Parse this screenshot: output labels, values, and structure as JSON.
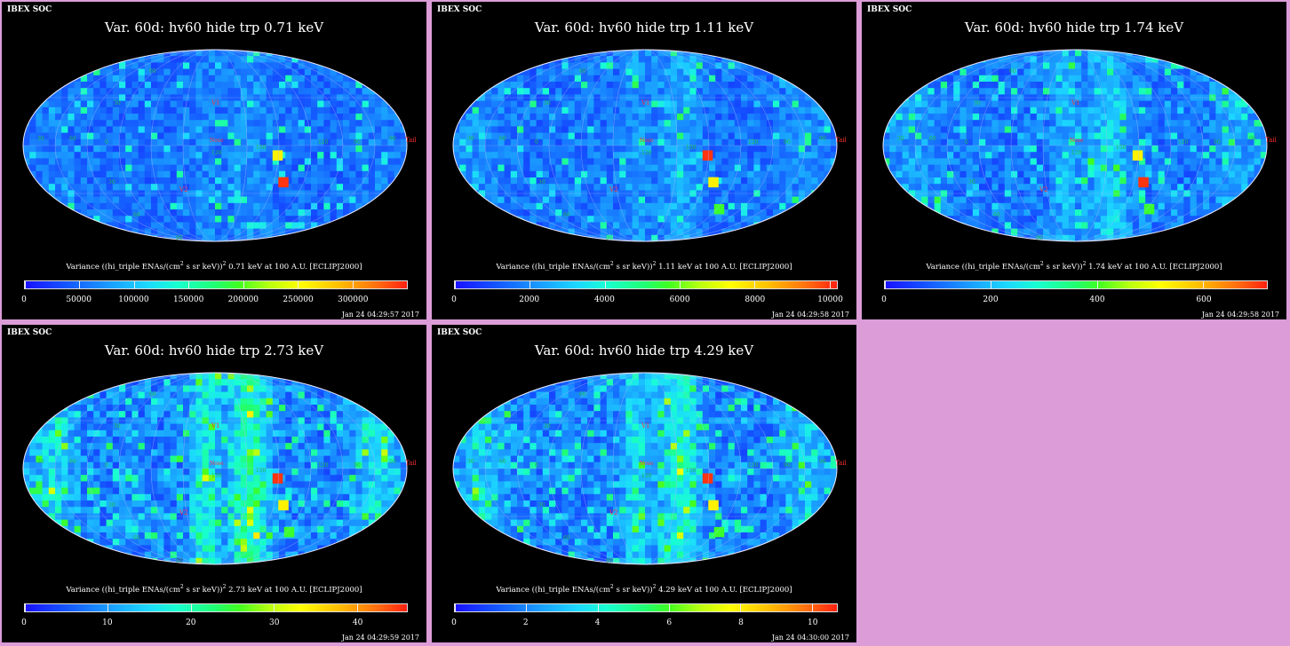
{
  "org_label": "IBEX SOC",
  "caption_prefix": "Variance ((hi_triple ENAs/(cm",
  "caption_mid": " s sr keV))",
  "caption_suffix": " at 100 A.U. [ECLIPJ2000]",
  "caption_sup": "2",
  "map_labels": {
    "v1": "V1",
    "v2": "V2",
    "nose": "Nose",
    "tail": "Tail",
    "graticule": [
      "60",
      "30",
      "0",
      "30",
      "60",
      "90",
      "120",
      "150",
      "120",
      "90",
      "30",
      "60",
      "90"
    ]
  },
  "colors": {
    "background": "#dc9cd8",
    "panel": "#000000",
    "map_base": "#1a50ff",
    "hot": "#ff2010",
    "warm": "#ffd000",
    "cool": "#20ff70"
  },
  "chart_data": [
    {
      "type": "heatmap",
      "title": "Var. 60d: hv60 hide trp 0.71 keV",
      "energy": "0.71 keV",
      "colorbar_range": [
        0,
        350000
      ],
      "colorbar_ticks": [
        0,
        50000,
        100000,
        150000,
        200000,
        250000,
        300000
      ],
      "colorbar_labels": [
        "0",
        "50000",
        "100000",
        "150000",
        "200000",
        "250000",
        "300000"
      ],
      "timestamp": "Jan 24 04:29:57 2017",
      "hotspots": [
        "yellow",
        "red"
      ],
      "activity": 0.15
    },
    {
      "type": "heatmap",
      "title": "Var. 60d: hv60 hide trp 1.11 keV",
      "energy": "1.11 keV",
      "colorbar_range": [
        0,
        10200
      ],
      "colorbar_ticks": [
        0,
        2000,
        4000,
        6000,
        8000,
        10000
      ],
      "colorbar_labels": [
        "0",
        "2000",
        "4000",
        "6000",
        "8000",
        "10000"
      ],
      "timestamp": "Jan 24 04:29:58 2017",
      "hotspots": [
        "red",
        "yellow",
        "green"
      ],
      "activity": 0.25
    },
    {
      "type": "heatmap",
      "title": "Var. 60d: hv60 hide trp 1.74 keV",
      "energy": "1.74 keV",
      "colorbar_range": [
        0,
        720
      ],
      "colorbar_ticks": [
        0,
        200,
        400,
        600
      ],
      "colorbar_labels": [
        "0",
        "200",
        "400",
        "600"
      ],
      "timestamp": "Jan 24 04:29:58 2017",
      "hotspots": [
        "yellow",
        "red",
        "green"
      ],
      "activity": 0.4
    },
    {
      "type": "heatmap",
      "title": "Var. 60d: hv60 hide trp 2.73 keV",
      "energy": "2.73 keV",
      "colorbar_range": [
        0,
        46
      ],
      "colorbar_ticks": [
        0,
        10,
        20,
        30,
        40
      ],
      "colorbar_labels": [
        "0",
        "10",
        "20",
        "30",
        "40"
      ],
      "timestamp": "Jan 24 04:29:59 2017",
      "hotspots": [
        "red",
        "yellow",
        "green"
      ],
      "activity": 0.7
    },
    {
      "type": "heatmap",
      "title": "Var. 60d: hv60 hide trp 4.29 keV",
      "energy": "4.29 keV",
      "colorbar_range": [
        0,
        10.7
      ],
      "colorbar_ticks": [
        0,
        2,
        4,
        6,
        8,
        10
      ],
      "colorbar_labels": [
        "0",
        "2",
        "4",
        "6",
        "8",
        "10"
      ],
      "timestamp": "Jan 24 04:30:00 2017",
      "hotspots": [
        "red",
        "yellow",
        "green"
      ],
      "activity": 0.6
    }
  ]
}
